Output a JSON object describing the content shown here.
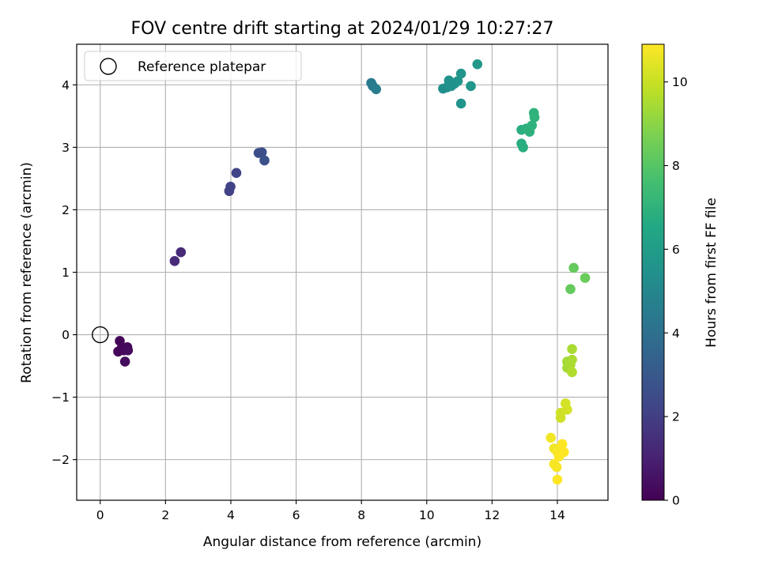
{
  "chart_data": {
    "type": "scatter",
    "title": "FOV centre drift starting at 2024/01/29 10:27:27",
    "xlabel": "Angular distance from reference (arcmin)",
    "ylabel": "Rotation from reference (arcmin)",
    "xlim": [
      -0.72,
      15.55
    ],
    "ylim": [
      -2.65,
      4.65
    ],
    "xticks": [
      "0",
      "2",
      "4",
      "6",
      "8",
      "10",
      "12",
      "14"
    ],
    "xtick_values": [
      0,
      2,
      4,
      6,
      8,
      10,
      12,
      14
    ],
    "yticks": [
      "−2",
      "−1",
      "0",
      "1",
      "2",
      "3",
      "4"
    ],
    "ytick_values": [
      -2,
      -1,
      0,
      1,
      2,
      3,
      4
    ],
    "grid": true,
    "legend": {
      "placement": "top-left",
      "label": "Reference platepar"
    },
    "reference_point": {
      "x": 0,
      "y": 0
    },
    "colorbar": {
      "label": "Hours from first FF file",
      "range": [
        0,
        10.9
      ],
      "ticks": [
        "0",
        "2",
        "4",
        "6",
        "8",
        "10"
      ],
      "tick_values": [
        0,
        2,
        4,
        6,
        8,
        10
      ],
      "colormap": "viridis"
    },
    "points": [
      {
        "x": 0.6,
        "y": -0.1,
        "t": 0.1
      },
      {
        "x": 0.55,
        "y": -0.27,
        "t": 0.1
      },
      {
        "x": 0.65,
        "y": -0.22,
        "t": 0.2
      },
      {
        "x": 0.72,
        "y": -0.25,
        "t": 0.2
      },
      {
        "x": 0.83,
        "y": -0.2,
        "t": 0.2
      },
      {
        "x": 0.85,
        "y": -0.25,
        "t": 0.3
      },
      {
        "x": 0.76,
        "y": -0.43,
        "t": 0.3
      },
      {
        "x": 2.28,
        "y": 1.18,
        "t": 1.3
      },
      {
        "x": 2.47,
        "y": 1.32,
        "t": 1.3
      },
      {
        "x": 3.95,
        "y": 2.3,
        "t": 2.1
      },
      {
        "x": 3.99,
        "y": 2.37,
        "t": 2.1
      },
      {
        "x": 4.17,
        "y": 2.59,
        "t": 2.2
      },
      {
        "x": 4.85,
        "y": 2.91,
        "t": 2.6
      },
      {
        "x": 4.95,
        "y": 2.92,
        "t": 2.6
      },
      {
        "x": 5.03,
        "y": 2.79,
        "t": 2.7
      },
      {
        "x": 8.3,
        "y": 4.03,
        "t": 4.5
      },
      {
        "x": 8.35,
        "y": 3.98,
        "t": 4.5
      },
      {
        "x": 8.45,
        "y": 3.93,
        "t": 4.6
      },
      {
        "x": 10.5,
        "y": 3.94,
        "t": 5.4
      },
      {
        "x": 10.62,
        "y": 3.96,
        "t": 5.4
      },
      {
        "x": 10.68,
        "y": 4.07,
        "t": 5.5
      },
      {
        "x": 10.75,
        "y": 3.98,
        "t": 5.5
      },
      {
        "x": 10.85,
        "y": 4.02,
        "t": 5.5
      },
      {
        "x": 10.95,
        "y": 4.06,
        "t": 5.6
      },
      {
        "x": 11.05,
        "y": 4.18,
        "t": 5.6
      },
      {
        "x": 11.05,
        "y": 3.7,
        "t": 5.6
      },
      {
        "x": 11.35,
        "y": 3.98,
        "t": 5.7
      },
      {
        "x": 11.55,
        "y": 4.33,
        "t": 5.8
      },
      {
        "x": 12.9,
        "y": 3.28,
        "t": 6.8
      },
      {
        "x": 12.9,
        "y": 3.06,
        "t": 6.8
      },
      {
        "x": 12.95,
        "y": 3.0,
        "t": 6.8
      },
      {
        "x": 13.05,
        "y": 3.3,
        "t": 6.9
      },
      {
        "x": 13.15,
        "y": 3.25,
        "t": 6.9
      },
      {
        "x": 13.22,
        "y": 3.35,
        "t": 7.0
      },
      {
        "x": 13.28,
        "y": 3.55,
        "t": 7.0
      },
      {
        "x": 13.3,
        "y": 3.48,
        "t": 7.0
      },
      {
        "x": 14.4,
        "y": 0.73,
        "t": 8.3
      },
      {
        "x": 14.5,
        "y": 1.07,
        "t": 8.3
      },
      {
        "x": 14.85,
        "y": 0.91,
        "t": 8.4
      },
      {
        "x": 14.3,
        "y": -0.43,
        "t": 9.4
      },
      {
        "x": 14.3,
        "y": -0.53,
        "t": 9.4
      },
      {
        "x": 14.4,
        "y": -0.48,
        "t": 9.5
      },
      {
        "x": 14.45,
        "y": -0.23,
        "t": 9.5
      },
      {
        "x": 14.45,
        "y": -0.4,
        "t": 9.5
      },
      {
        "x": 14.45,
        "y": -0.6,
        "t": 9.6
      },
      {
        "x": 14.1,
        "y": -1.25,
        "t": 10.1
      },
      {
        "x": 14.1,
        "y": -1.33,
        "t": 10.1
      },
      {
        "x": 14.25,
        "y": -1.1,
        "t": 10.2
      },
      {
        "x": 14.3,
        "y": -1.2,
        "t": 10.2
      },
      {
        "x": 13.8,
        "y": -1.65,
        "t": 10.7
      },
      {
        "x": 13.9,
        "y": -1.82,
        "t": 10.7
      },
      {
        "x": 13.9,
        "y": -2.07,
        "t": 10.8
      },
      {
        "x": 13.98,
        "y": -2.12,
        "t": 10.8
      },
      {
        "x": 14.0,
        "y": -1.88,
        "t": 10.8
      },
      {
        "x": 14.05,
        "y": -1.95,
        "t": 10.9
      },
      {
        "x": 14.15,
        "y": -1.75,
        "t": 10.9
      },
      {
        "x": 14.2,
        "y": -1.88,
        "t": 10.9
      },
      {
        "x": 14.0,
        "y": -2.32,
        "t": 10.9
      }
    ]
  }
}
